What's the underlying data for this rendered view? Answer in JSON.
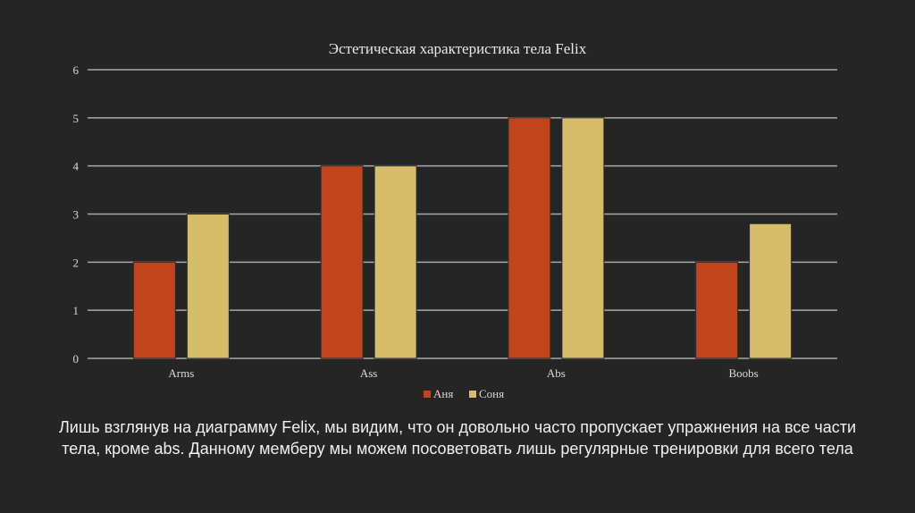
{
  "chart_data": {
    "type": "bar",
    "title": "Эстетическая характеристика тела Felix",
    "categories": [
      "Arms",
      "Ass",
      "Abs",
      "Boobs"
    ],
    "series": [
      {
        "name": "Аня",
        "values": [
          2,
          4,
          5,
          2
        ],
        "color": "#c0451d"
      },
      {
        "name": "Соня",
        "values": [
          3,
          4,
          5,
          2.8
        ],
        "color": "#d5bd6b"
      }
    ],
    "xlabel": "",
    "ylabel": "",
    "ylim": [
      0,
      6
    ],
    "yticks": [
      "0",
      "1",
      "2",
      "3",
      "4",
      "5",
      "6"
    ],
    "grid": true,
    "legend_position": "bottom"
  },
  "caption": "Лишь взглянув на диаграмму Felix, мы видим, что он довольно часто пропускает упражнения на все части тела, кроме abs. Данному мемберу мы можем посоветовать лишь регулярные тренировки для всего тела"
}
